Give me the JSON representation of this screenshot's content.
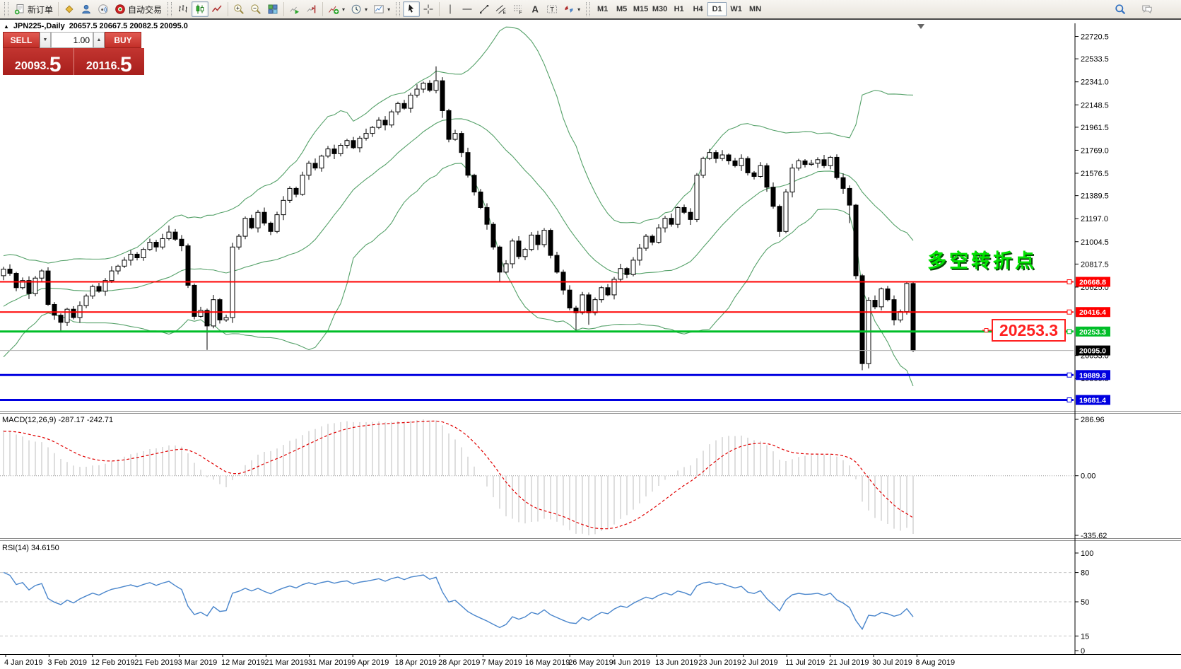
{
  "toolbar": {
    "items": [
      {
        "type": "grip"
      },
      {
        "type": "button",
        "icon": "new-order",
        "label": "新订单"
      },
      {
        "type": "sep"
      },
      {
        "type": "button",
        "icon": "new-chart"
      },
      {
        "type": "button",
        "icon": "profile"
      },
      {
        "type": "button",
        "icon": "signal"
      },
      {
        "type": "button",
        "icon": "autotrading",
        "label": "自动交易"
      },
      {
        "type": "grip"
      },
      {
        "type": "button",
        "icon": "bar-chart"
      },
      {
        "type": "button",
        "icon": "candlestick",
        "selected": true
      },
      {
        "type": "button",
        "icon": "line-chart"
      },
      {
        "type": "sep"
      },
      {
        "type": "button",
        "icon": "zoom-in"
      },
      {
        "type": "button",
        "icon": "zoom-out"
      },
      {
        "type": "button",
        "icon": "tile-windows"
      },
      {
        "type": "sep"
      },
      {
        "type": "button",
        "icon": "auto-scroll"
      },
      {
        "type": "button",
        "icon": "chart-shift"
      },
      {
        "type": "sep"
      },
      {
        "type": "button",
        "icon": "indicators",
        "dropdown": true
      },
      {
        "type": "button",
        "icon": "periods",
        "dropdown": true
      },
      {
        "type": "button",
        "icon": "templates",
        "dropdown": true
      },
      {
        "type": "grip"
      },
      {
        "type": "button",
        "icon": "cursor",
        "selected": true
      },
      {
        "type": "button",
        "icon": "crosshair"
      },
      {
        "type": "sep"
      },
      {
        "type": "button",
        "icon": "vertical-line"
      },
      {
        "type": "button",
        "icon": "horizontal-line"
      },
      {
        "type": "button",
        "icon": "trend-line"
      },
      {
        "type": "button",
        "icon": "equidistant-channel"
      },
      {
        "type": "button",
        "icon": "fibonacci"
      },
      {
        "type": "button",
        "icon": "text"
      },
      {
        "type": "button",
        "icon": "text-label"
      },
      {
        "type": "button",
        "icon": "arrows",
        "dropdown": true
      },
      {
        "type": "grip"
      }
    ],
    "timeframes": [
      "M1",
      "M5",
      "M15",
      "M30",
      "H1",
      "H4",
      "D1",
      "W1",
      "MN"
    ],
    "selected_timeframe": "D1",
    "right_icons": [
      "search",
      "chat"
    ]
  },
  "title": {
    "collapse_icon": "▲",
    "symbol": "JPN225-,Daily",
    "ohlc": "20657.5 20667.5 20082.5 20095.0"
  },
  "one_click": {
    "sell_label": "SELL",
    "buy_label": "BUY",
    "volume": "1.00",
    "sell_price_main": "20093",
    "sell_price_big": "5",
    "buy_price_main": "20116",
    "buy_price_big": "5"
  },
  "chart_data": {
    "type": "candlestick",
    "symbol": "JPN225",
    "timeframe": "Daily",
    "ylim": [
      19590,
      22830
    ],
    "price_axis_ticks": [
      "22720.5",
      "22533.5",
      "22341.0",
      "22148.5",
      "21961.5",
      "21769.0",
      "21576.5",
      "21389.5",
      "21197.0",
      "21004.5",
      "20817.5",
      "20625.0",
      "20053.0",
      "19860.5"
    ],
    "x_axis_dates": [
      "4 Jan 2019",
      "3 Feb 2019",
      "12 Feb 2019",
      "21 Feb 2019",
      "3 Mar 2019",
      "12 Mar 2019",
      "21 Mar 2019",
      "31 Mar 2019",
      "9 Apr 2019",
      "18 Apr 2019",
      "28 Apr 2019",
      "7 May 2019",
      "16 May 2019",
      "26 May 2019",
      "4 Jun 2019",
      "13 Jun 2019",
      "23 Jun 2019",
      "2 Jul 2019",
      "11 Jul 2019",
      "21 Jul 2019",
      "30 Jul 2019",
      "8 Aug 2019"
    ],
    "candles": {
      "visible_start": 26,
      "first_open": 19560,
      "closes": [
        19600,
        19700,
        19820,
        19760,
        19900,
        20010,
        19950,
        20080,
        20150,
        20100,
        20220,
        20300,
        20260,
        20380,
        20450,
        20400,
        20500,
        20560,
        20520,
        20600,
        20640,
        20590,
        20660,
        20700,
        20670,
        20720,
        20775,
        20740,
        20620,
        20680,
        20570,
        20700,
        20760,
        20480,
        20390,
        20330,
        20440,
        20370,
        20470,
        20550,
        20630,
        20590,
        20680,
        20760,
        20800,
        20850,
        20900,
        20870,
        20940,
        21000,
        20960,
        21030,
        21085,
        21025,
        20970,
        20640,
        20380,
        20430,
        20300,
        20520,
        20350,
        20370,
        20960,
        21050,
        21200,
        21120,
        21250,
        21160,
        21090,
        21230,
        21350,
        21450,
        21400,
        21560,
        21660,
        21620,
        21720,
        21780,
        21740,
        21810,
        21850,
        21790,
        21870,
        21910,
        21960,
        22020,
        21980,
        22090,
        22160,
        22120,
        22230,
        22280,
        22330,
        22270,
        22350,
        22100,
        21860,
        21910,
        21750,
        21560,
        21420,
        21290,
        21150,
        20960,
        20750,
        20820,
        21010,
        20880,
        20940,
        21060,
        20980,
        21100,
        20890,
        20750,
        20600,
        20450,
        20410,
        20560,
        20410,
        20520,
        20620,
        20560,
        20690,
        20780,
        20730,
        20850,
        20950,
        21050,
        21000,
        21120,
        21200,
        21150,
        21290,
        21250,
        21190,
        21560,
        21700,
        21750,
        21700,
        21730,
        21680,
        21640,
        21700,
        21580,
        21550,
        21640,
        21460,
        21300,
        21090,
        21420,
        21620,
        21680,
        21650,
        21660,
        21690,
        21640,
        21710,
        21540,
        21450,
        21310,
        20720,
        19985,
        20515,
        20460,
        20610,
        20520,
        20350,
        20420,
        20655,
        20095
      ],
      "high_wick_cycle": [
        15,
        30,
        20,
        40,
        12,
        25,
        35,
        18
      ],
      "low_wick_cycle": [
        25,
        12,
        38,
        20,
        30,
        15,
        45,
        22
      ],
      "wick_overrides": {
        "35": [
          15,
          80
        ],
        "52": [
          55,
          15
        ],
        "58": [
          15,
          200
        ],
        "94": [
          120,
          25
        ],
        "95": [
          30,
          60
        ],
        "104": [
          12,
          80
        ],
        "116": [
          18,
          145
        ],
        "118": [
          20,
          100
        ],
        "148": [
          15,
          45
        ],
        "159": [
          25,
          150
        ],
        "160": [
          10,
          30
        ],
        "161": [
          15,
          55
        ],
        "162": [
          25,
          40
        ],
        "169": [
          13,
          13
        ]
      }
    },
    "indicators": {
      "bollinger": {
        "period": 20,
        "deviation": 2,
        "color": "#55A169"
      },
      "macd": {
        "fast": 12,
        "slow": 26,
        "signal": 9,
        "label": "MACD(12,26,9) -287.17 -242.71",
        "axis_labels": [
          "286.96",
          "0.00",
          "-335.62"
        ],
        "bar_color": "#bdbdbd",
        "signal_color": "#e00000"
      },
      "rsi": {
        "period": 14,
        "label": "RSI(14) 34.6150",
        "levels": [
          80,
          50,
          15
        ],
        "axis_labels": [
          [
            "100",
            100
          ],
          [
            "80",
            80
          ],
          [
            "50",
            50
          ],
          [
            "15",
            15
          ],
          [
            "0",
            0
          ]
        ],
        "line_color": "#4a86cc"
      }
    },
    "hlines": [
      {
        "price": 20668.8,
        "label": "20668.8",
        "color": "#FF0000",
        "width": 2
      },
      {
        "price": 20416.4,
        "label": "20416.4",
        "color": "#FF0000",
        "width": 2
      },
      {
        "price": 20253.3,
        "label": "20253.3",
        "color": "#00BE28",
        "width": 3
      },
      {
        "price": 19889.8,
        "label": "19889.8",
        "color": "#0000E0",
        "width": 3
      },
      {
        "price": 19681.4,
        "label": "19681.4",
        "color": "#0000E0",
        "width": 3
      }
    ],
    "current_price": {
      "value": 20095.0,
      "label": "20095.0",
      "line_color": "#b0b0b0",
      "label_bg": "#000000"
    },
    "annotations": {
      "turning_point": {
        "text": "多空转折点",
        "color": "#00E400",
        "shadow": "#0a4a0a",
        "x": 1312,
        "y": 378,
        "size": 27
      },
      "price_box": {
        "text": "20253.3",
        "x": 1404,
        "y": 452,
        "w": 103,
        "h": 30,
        "color": "#ff2020"
      }
    }
  }
}
